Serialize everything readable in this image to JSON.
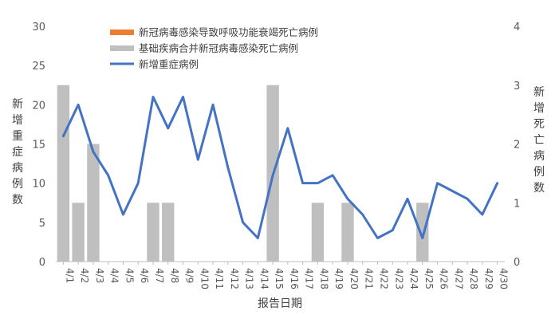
{
  "chart_data": {
    "type": "bar+line",
    "title": "",
    "xlabel": "报告日期",
    "ylabel_left": "新增重症病例数",
    "ylabel_right": "新增死亡病例数",
    "ylim_left": [
      0,
      30
    ],
    "ylim_right": [
      0,
      4
    ],
    "yticks_left": [
      "0",
      "5",
      "10",
      "15",
      "20",
      "25",
      "30"
    ],
    "yticks_right": [
      "0",
      "1",
      "2",
      "3",
      "4"
    ],
    "categories": [
      "4/1",
      "4/2",
      "4/3",
      "4/4",
      "4/5",
      "4/6",
      "4/7",
      "4/8",
      "4/9",
      "4/10",
      "4/11",
      "4/12",
      "4/13",
      "4/14",
      "4/15",
      "4/16",
      "4/17",
      "4/18",
      "4/19",
      "4/20",
      "4/21",
      "4/22",
      "4/23",
      "4/24",
      "4/25",
      "4/26",
      "4/27",
      "4/28",
      "4/29",
      "4/30"
    ],
    "legend_placement": "top-center",
    "series": [
      {
        "name": "新冠病毒感染导致呼吸功能衰竭死亡病例",
        "type": "bar",
        "axis": "right",
        "color": "#ED7D31",
        "values": [
          0,
          0,
          0,
          0,
          0,
          0,
          0,
          0,
          0,
          0,
          0,
          0,
          0,
          0,
          0,
          0,
          0,
          0,
          0,
          0,
          0,
          0,
          0,
          0,
          0,
          0,
          0,
          0,
          0,
          0
        ]
      },
      {
        "name": "基础疾病合并新冠病毒感染死亡病例",
        "type": "bar",
        "axis": "right",
        "color": "#BFBFBF",
        "values": [
          3,
          1,
          2,
          0,
          0,
          0,
          1,
          1,
          0,
          0,
          0,
          0,
          0,
          0,
          3,
          0,
          0,
          1,
          0,
          1,
          0,
          0,
          0,
          0,
          1,
          0,
          0,
          0,
          0,
          0
        ]
      },
      {
        "name": "新增重症病例",
        "type": "line",
        "axis": "left",
        "color": "#4472C4",
        "values": [
          16,
          20,
          14,
          11,
          6,
          10,
          21,
          17,
          21,
          13,
          20,
          12,
          5,
          3,
          11,
          17,
          10,
          10,
          11,
          8,
          6,
          3,
          4,
          8,
          3,
          10,
          9,
          8,
          6,
          10
        ]
      }
    ]
  }
}
